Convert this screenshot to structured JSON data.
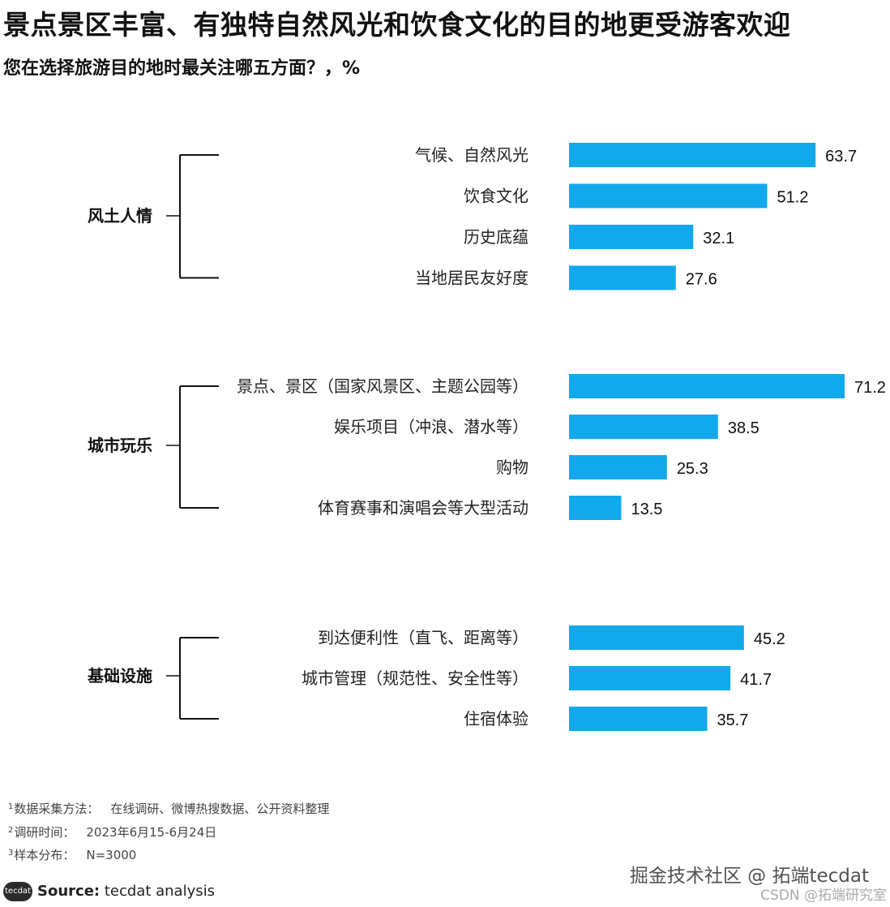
{
  "title": "景点景区丰富、有独特自然风光和饮食文化的目的地更受游客欢迎",
  "subtitle": "您在选择旅游目的地时最关注哪五方面？，%",
  "chart_data": {
    "type": "bar",
    "orientation": "horizontal",
    "groups": [
      {
        "name": "风土人情",
        "categories": [
          "气候、自然风光",
          "饮食文化",
          "历史底蕴",
          "当地居民友好度"
        ],
        "values": [
          63.7,
          51.2,
          32.1,
          27.6
        ]
      },
      {
        "name": "城市玩乐",
        "categories": [
          "景点、景区（国家风景区、主题公园等）",
          "娱乐项目（冲浪、潜水等）",
          "购物",
          "体育赛事和演唱会等大型活动"
        ],
        "values": [
          71.2,
          38.5,
          25.3,
          13.5
        ]
      },
      {
        "name": "基础设施",
        "categories": [
          "到达便利性（直飞、距离等）",
          "城市管理（规范性、安全性等）",
          "住宿体验"
        ],
        "values": [
          45.2,
          41.7,
          35.7
        ]
      }
    ],
    "bar_color": "#12a8ec",
    "xlim": [
      0,
      71.2
    ],
    "grid": false
  },
  "notes": [
    {
      "num": "1",
      "key": "数据采集方法：",
      "value": "在线调研、微博热搜数据、公开资料整理"
    },
    {
      "num": "2",
      "key": "调研时间：",
      "value": "2023年6月15-6月24日"
    },
    {
      "num": "3",
      "key": "样本分布：",
      "value": "N=3000"
    }
  ],
  "source": {
    "logo": "tecdat",
    "label": "Source:",
    "text": "tecdat analysis"
  },
  "watermarks": {
    "line1": "掘金技术社区 @ 拓端tecdat",
    "line2": "CSDN @拓端研究室"
  }
}
